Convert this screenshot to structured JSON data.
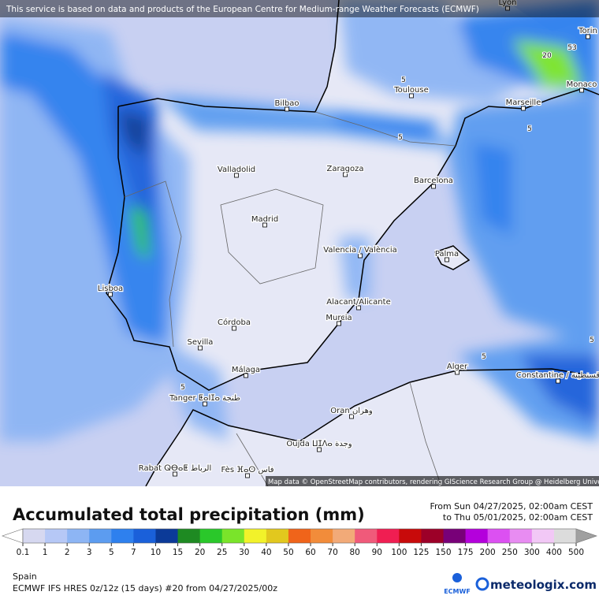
{
  "header": {
    "notice": "This service is based on data and products of the European Centre for Medium-range Weather Forecasts (ECMWF)"
  },
  "map": {
    "attribution": "Map data © OpenStreetMap contributors, rendering GIScience Research Group @ Heidelberg University",
    "cities": [
      "Lyon",
      "Torin",
      "Monaco",
      "Bilbao",
      "Toulouse",
      "Marseille",
      "Valladolid",
      "Zaragoza",
      "Barcelona",
      "Madrid",
      "Valencia / València",
      "Palma",
      "Lisboa",
      "Alacant/Alicante",
      "Murcia",
      "Córdoba",
      "Sevilla",
      "Málaga",
      "Alger",
      "Constantine / قسنطينة",
      "Tanger ⵟⴰⵏⵊⴰ طنجة",
      "Oran وهران",
      "Oujda ⵡⵊⴷⴰ وجدة",
      "Rabat ⵕⴱⴰⵟ الرباط",
      "Fès ⴼⴰⵙ فاس"
    ],
    "contour_labels": [
      5,
      5,
      5,
      5,
      5,
      5,
      20,
      53
    ]
  },
  "legend": {
    "title": "Accumulated total precipitation (mm)",
    "period_from": "From Sun 04/27/2025, 02:00am CEST",
    "period_to": "to Thu 05/01/2025, 02:00am CEST",
    "ticks": [
      0.1,
      1,
      2,
      3,
      5,
      7,
      10,
      15,
      20,
      25,
      30,
      40,
      50,
      60,
      70,
      80,
      90,
      100,
      125,
      150,
      175,
      200,
      250,
      300,
      400,
      500
    ],
    "colors": [
      "#d6d8f0",
      "#b6c8f6",
      "#8db5f4",
      "#5c9cf0",
      "#2e80ee",
      "#1a60da",
      "#0b3a98",
      "#1e8a22",
      "#2ac82a",
      "#7ae42a",
      "#f2f22a",
      "#e2c81e",
      "#f0641a",
      "#f28c3a",
      "#f2aa78",
      "#f05a7a",
      "#f01e52",
      "#c80a0a",
      "#9c0028",
      "#780078",
      "#b400dc",
      "#dc50f2",
      "#e88cf2",
      "#f2c8f6",
      "#dcdcdc"
    ],
    "under_color": "#ffffff",
    "over_color": "#a0a0a0"
  },
  "footer": {
    "region": "Spain",
    "model": "ECMWF IFS HRES 0z/12z (15 days) #20 from  04/27/2025/00z",
    "ecmwf_logo": "ECMWF",
    "brand": "meteologix.com"
  }
}
